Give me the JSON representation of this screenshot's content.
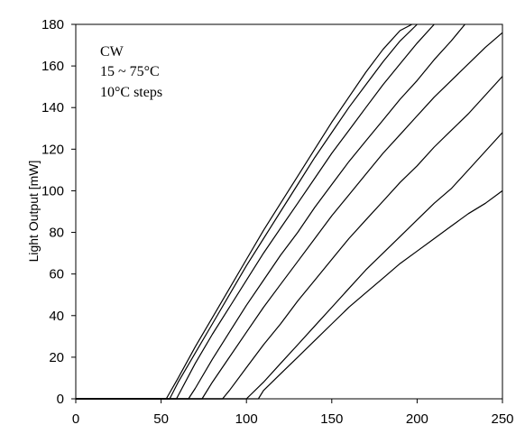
{
  "chart_data": {
    "type": "line",
    "title": "",
    "xlabel": "",
    "ylabel": "Light Output [mW]",
    "xlim": [
      0,
      250
    ],
    "ylim": [
      0,
      180
    ],
    "xticks": [
      0,
      50,
      100,
      150,
      200,
      250
    ],
    "yticks": [
      0,
      20,
      40,
      60,
      80,
      100,
      120,
      140,
      160,
      180
    ],
    "grid": false,
    "annotations": [
      "CW",
      "15 ~ 75°C",
      "10°C steps"
    ],
    "series": [
      {
        "x": [
          0,
          53,
          60,
          70,
          80,
          90,
          100,
          110,
          120,
          130,
          140,
          150,
          160,
          170,
          180,
          190,
          197
        ],
        "y": [
          0,
          0,
          10,
          25,
          39,
          53,
          67,
          81,
          94,
          107,
          120,
          133,
          145,
          157,
          168,
          177,
          180
        ]
      },
      {
        "x": [
          0,
          55,
          60,
          70,
          80,
          90,
          100,
          110,
          120,
          130,
          140,
          150,
          160,
          170,
          180,
          190,
          200
        ],
        "y": [
          0,
          0,
          8,
          22,
          36,
          50,
          64,
          77,
          90,
          103,
          116,
          128,
          140,
          151,
          162,
          172,
          180
        ]
      },
      {
        "x": [
          0,
          59,
          70,
          80,
          90,
          100,
          110,
          120,
          130,
          140,
          150,
          160,
          170,
          180,
          190,
          200,
          210
        ],
        "y": [
          0,
          0,
          17,
          31,
          44,
          57,
          70,
          82,
          94,
          106,
          118,
          129,
          140,
          151,
          161,
          171,
          180
        ]
      },
      {
        "x": [
          0,
          66,
          70,
          80,
          90,
          100,
          110,
          120,
          130,
          140,
          150,
          160,
          170,
          180,
          190,
          200,
          210,
          220,
          228
        ],
        "y": [
          0,
          0,
          5,
          19,
          32,
          45,
          57,
          69,
          80,
          92,
          103,
          114,
          124,
          134,
          144,
          153,
          163,
          172,
          180
        ]
      },
      {
        "x": [
          0,
          74,
          80,
          90,
          100,
          110,
          120,
          130,
          140,
          150,
          160,
          170,
          180,
          190,
          200,
          210,
          220,
          230,
          240,
          250
        ],
        "y": [
          0,
          0,
          8,
          20,
          32,
          44,
          55,
          66,
          77,
          88,
          98,
          108,
          118,
          127,
          136,
          145,
          153,
          161,
          169,
          176
        ]
      },
      {
        "x": [
          0,
          86,
          90,
          100,
          110,
          120,
          130,
          140,
          150,
          160,
          170,
          180,
          190,
          200,
          210,
          220,
          230,
          240,
          250
        ],
        "y": [
          0,
          0,
          4,
          15,
          26,
          36,
          47,
          57,
          67,
          77,
          86,
          95,
          104,
          112,
          121,
          129,
          137,
          146,
          155
        ]
      },
      {
        "x": [
          0,
          100,
          110,
          120,
          130,
          140,
          150,
          160,
          170,
          180,
          190,
          200,
          210,
          220,
          230,
          240,
          250
        ],
        "y": [
          0,
          0,
          8,
          17,
          26,
          35,
          44,
          53,
          62,
          70,
          78,
          86,
          94,
          101,
          110,
          119,
          128
        ]
      },
      {
        "x": [
          0,
          107,
          110,
          120,
          130,
          140,
          150,
          160,
          170,
          180,
          190,
          200,
          210,
          220,
          230,
          240,
          250
        ],
        "y": [
          0,
          0,
          4,
          12,
          20,
          28,
          36,
          44,
          51,
          58,
          65,
          71,
          77,
          83,
          89,
          94,
          100
        ]
      }
    ]
  }
}
